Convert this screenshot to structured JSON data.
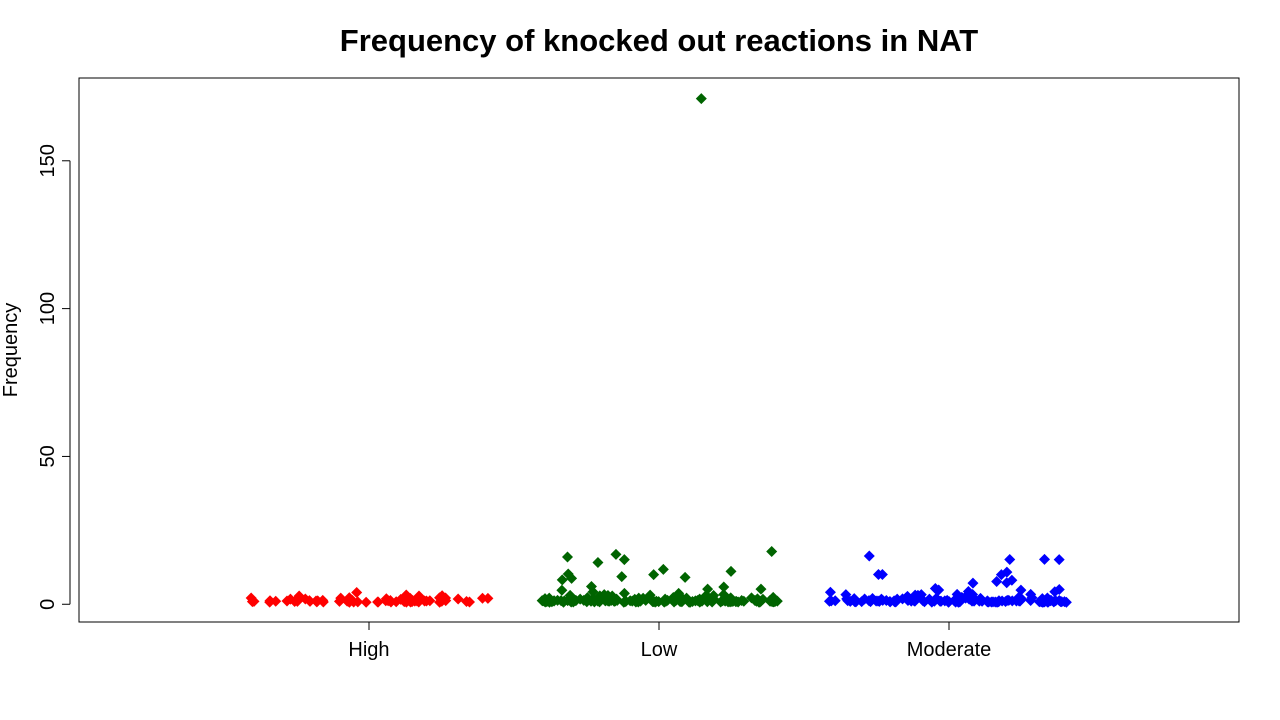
{
  "chart_data": {
    "type": "scatter",
    "title": "Frequency of knocked out reactions in NAT",
    "xlabel": "",
    "ylabel": "Frequency",
    "categories": [
      "High",
      "Low",
      "Moderate"
    ],
    "y_ticks": [
      0,
      50,
      100,
      150
    ],
    "ylim": [
      -6,
      178
    ],
    "grid": false,
    "marker": "filled-diamond",
    "jitter": "horizontal",
    "series": [
      {
        "category": "High",
        "color": "#ff0000",
        "values": [
          3,
          2,
          1,
          2,
          1,
          1,
          2,
          1,
          3,
          2,
          1,
          1,
          1,
          1,
          2,
          1,
          1,
          1,
          2,
          1,
          1,
          2,
          1,
          1,
          1,
          1,
          1,
          2,
          1,
          1,
          1,
          1,
          1,
          2,
          1,
          1,
          1,
          1,
          4,
          2,
          1,
          1,
          1,
          1,
          2,
          3,
          1,
          2,
          1,
          1,
          2,
          1,
          1,
          1,
          1,
          2,
          1,
          2,
          3,
          1,
          1,
          1,
          1,
          1,
          2,
          1,
          1,
          1
        ]
      },
      {
        "category": "Low",
        "color": "#006400",
        "values": [
          171,
          17,
          15,
          14,
          16,
          18,
          12,
          11,
          10,
          9,
          9,
          9,
          8,
          10,
          6,
          5,
          6,
          5,
          5,
          4,
          4,
          4,
          3,
          3,
          3,
          3,
          3,
          3,
          3,
          3,
          3,
          3,
          3,
          2,
          2,
          2,
          2,
          2,
          2,
          2,
          2,
          2,
          2,
          2,
          2,
          2,
          2,
          2,
          2,
          2,
          2,
          2,
          2,
          2,
          2,
          2,
          2,
          2,
          2,
          2,
          1,
          1,
          1,
          1,
          1,
          1,
          1,
          1,
          1,
          1,
          1,
          1,
          1,
          1,
          1,
          1,
          1,
          1,
          1,
          1,
          1,
          1,
          1,
          1,
          1,
          1,
          1,
          1,
          1,
          1,
          1,
          1,
          1,
          1,
          1,
          1,
          1,
          1,
          1,
          1,
          1,
          1,
          1,
          1,
          1,
          1,
          1,
          1,
          1,
          1,
          1,
          1,
          1,
          1,
          1,
          1,
          1,
          1,
          1,
          1,
          1,
          1,
          1,
          1,
          1,
          1,
          1,
          1,
          1,
          1,
          1,
          1,
          1,
          1,
          1,
          1,
          1,
          1,
          1,
          1,
          1,
          1,
          1,
          1,
          1,
          1,
          1,
          1,
          1,
          1,
          1,
          1,
          1,
          1,
          1,
          1,
          1,
          1
        ]
      },
      {
        "category": "Moderate",
        "color": "#0000ff",
        "values": [
          16,
          15,
          15,
          15,
          10,
          10,
          10,
          11,
          8,
          8,
          7,
          7,
          5,
          5,
          5,
          5,
          4,
          4,
          4,
          3,
          3,
          3,
          3,
          3,
          3,
          3,
          3,
          3,
          2,
          2,
          2,
          2,
          2,
          2,
          2,
          2,
          2,
          2,
          2,
          2,
          2,
          2,
          2,
          2,
          2,
          2,
          2,
          2,
          2,
          1,
          1,
          1,
          1,
          1,
          1,
          1,
          1,
          1,
          1,
          1,
          1,
          1,
          1,
          1,
          1,
          1,
          1,
          1,
          1,
          1,
          1,
          1,
          1,
          1,
          1,
          1,
          1,
          1,
          1,
          1,
          1,
          1,
          1,
          1,
          1,
          1,
          1,
          1,
          1,
          1,
          1,
          1,
          1,
          1,
          1,
          1,
          1,
          1,
          1,
          1,
          1,
          1,
          1,
          1,
          1,
          1,
          1,
          1,
          1,
          1,
          1,
          1,
          1,
          1,
          1,
          1,
          1,
          1,
          1,
          1,
          1,
          1,
          1,
          1,
          1,
          1,
          1,
          1,
          1,
          1,
          1,
          1,
          1,
          1,
          1,
          1,
          1
        ]
      }
    ]
  }
}
